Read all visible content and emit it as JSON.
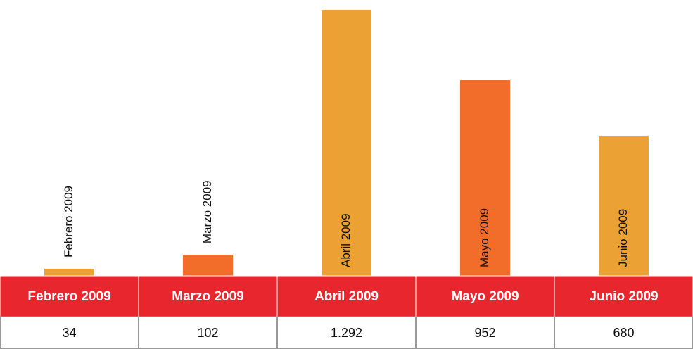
{
  "chart_data": {
    "type": "bar",
    "categories": [
      "Febrero 2009",
      "Marzo 2009",
      "Abril 2009",
      "Mayo 2009",
      "Junio 2009"
    ],
    "values": [
      34,
      102,
      1292,
      952,
      680
    ],
    "value_labels": [
      "34",
      "102",
      "1.292",
      "952",
      "680"
    ],
    "colors": [
      "#eba133",
      "#f26d2a",
      "#eba133",
      "#f26d2a",
      "#eba133"
    ],
    "header_color": "#e8262e"
  }
}
